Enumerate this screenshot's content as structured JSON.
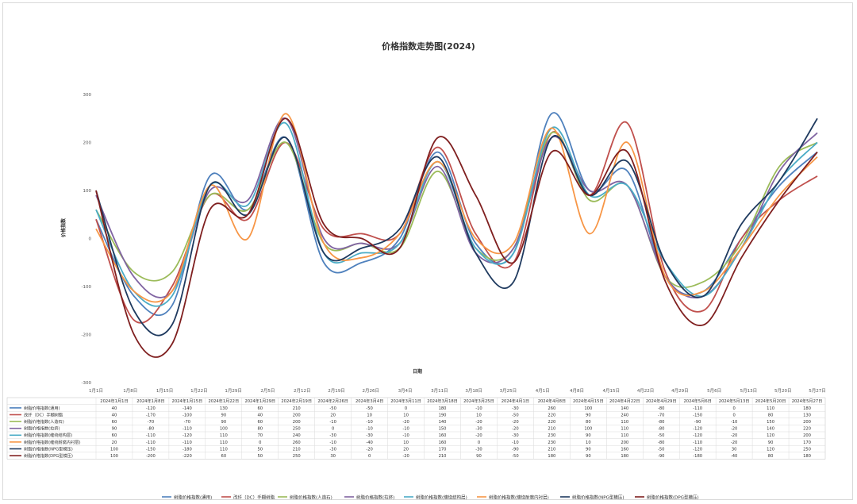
{
  "chart_data": {
    "type": "line",
    "title": "价格指数走势图(2024)",
    "xlabel": "日期",
    "ylabel": "价格指数",
    "ylim": [
      -300,
      300
    ],
    "yticks": [
      300,
      200,
      100,
      0,
      -100,
      -200,
      -300
    ],
    "grid": false,
    "legend": "bottom",
    "axis_categories": [
      "1月1日",
      "1月8日",
      "1月15日",
      "1月22日",
      "1月29日",
      "2月5日",
      "2月12日",
      "2月19日",
      "2月26日",
      "3月4日",
      "3月11日",
      "3月18日",
      "3月25日",
      "4月1日",
      "4月8日",
      "4月15日",
      "4月22日",
      "4月29日",
      "5月6日",
      "5月13日",
      "5月20日",
      "5月27日"
    ],
    "categories": [
      "2024年1月1日",
      "2024年1月8日",
      "2024年1月15日",
      "2024年1月22日",
      "2024年1月29日",
      "2024年2月19日",
      "2024年2月26日",
      "2024年3月4日",
      "2024年3月11日",
      "2024年3月18日",
      "2024年3月25日",
      "2024年4月1日",
      "2024年4月8日",
      "2024年4月15日",
      "2024年4月22日",
      "2024年4月29日",
      "2024年5月6日",
      "2024年5月13日",
      "2024年5月20日",
      "2024年5月27日"
    ],
    "series": [
      {
        "name": "树脂价格指数(通用)",
        "color": "#4f81bd",
        "values": [
          40,
          -120,
          -140,
          130,
          60,
          210,
          -50,
          -50,
          0,
          180,
          -10,
          -30,
          260,
          100,
          140,
          -80,
          -110,
          0,
          110,
          180
        ]
      },
      {
        "name": "改纤（DC）手糊树脂",
        "color": "#c0504d",
        "values": [
          40,
          -170,
          -100,
          90,
          40,
          200,
          20,
          10,
          10,
          190,
          10,
          -50,
          220,
          90,
          240,
          -70,
          -150,
          0,
          80,
          130
        ]
      },
      {
        "name": "树脂价格指数(人造石)",
        "color": "#9bbb59",
        "values": [
          60,
          -70,
          -70,
          90,
          60,
          200,
          -10,
          -10,
          -20,
          140,
          -20,
          -20,
          220,
          80,
          110,
          -80,
          -90,
          -10,
          150,
          200
        ]
      },
      {
        "name": "树脂价格指数(拉挤)",
        "color": "#8064a2",
        "values": [
          90,
          -80,
          -110,
          100,
          80,
          250,
          0,
          -10,
          -10,
          150,
          -30,
          -20,
          210,
          100,
          110,
          -80,
          -120,
          -20,
          140,
          220
        ]
      },
      {
        "name": "树脂价格指数(缠绕结构层)",
        "color": "#4bacc6",
        "values": [
          60,
          -110,
          -120,
          110,
          70,
          240,
          -30,
          -30,
          -10,
          160,
          -20,
          -30,
          230,
          90,
          110,
          -50,
          -120,
          -20,
          120,
          200
        ]
      },
      {
        "name": "树脂价格指数(缠绕耐腐内衬层)",
        "color": "#f79646",
        "values": [
          20,
          -110,
          -110,
          110,
          0,
          260,
          -10,
          -40,
          10,
          160,
          0,
          -10,
          230,
          10,
          200,
          -80,
          -110,
          -20,
          90,
          170
        ]
      },
      {
        "name": "树脂价格指数(NPG型模压)",
        "color": "#1f3a5f",
        "values": [
          100,
          -150,
          -180,
          110,
          50,
          210,
          -30,
          -20,
          20,
          170,
          -30,
          -90,
          210,
          90,
          160,
          -50,
          -120,
          30,
          120,
          250
        ]
      },
      {
        "name": "树脂价格指数(DPG型模压)",
        "color": "#7f1f1f",
        "values": [
          100,
          -200,
          -220,
          60,
          50,
          250,
          30,
          0,
          -20,
          210,
          90,
          -50,
          180,
          90,
          180,
          -90,
          -180,
          -40,
          80,
          180
        ]
      }
    ]
  }
}
